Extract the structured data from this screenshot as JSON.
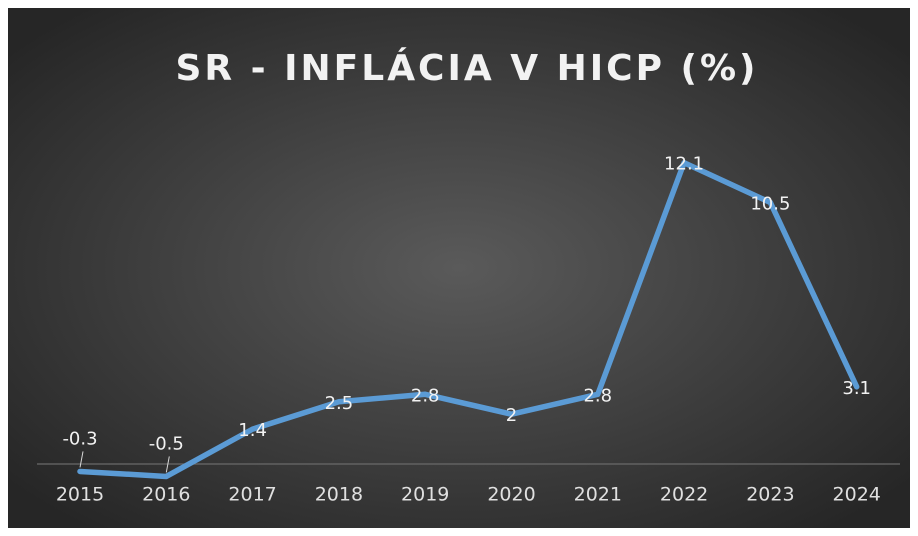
{
  "chart_data": {
    "type": "line",
    "title": "SR - INFLÁCIA V HICP (%)",
    "categories": [
      "2015",
      "2016",
      "2017",
      "2018",
      "2019",
      "2020",
      "2021",
      "2022",
      "2023",
      "2024"
    ],
    "values": [
      -0.3,
      -0.5,
      1.4,
      2.5,
      2.8,
      2,
      2.8,
      12.1,
      10.5,
      3.1
    ],
    "color": "#5b9bd5"
  }
}
